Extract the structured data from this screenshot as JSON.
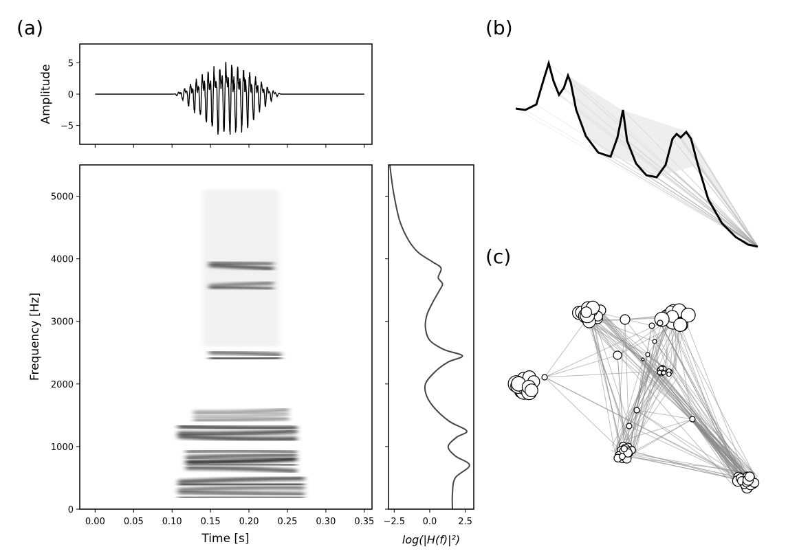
{
  "panels": {
    "a": "(a)",
    "b": "(b)",
    "c": "(c)"
  },
  "chart_data": [
    {
      "id": "waveform",
      "type": "line",
      "title": "",
      "xlabel": "",
      "ylabel": "Amplitude",
      "xlim": [
        -0.02,
        0.36
      ],
      "ylim": [
        -8,
        8
      ],
      "yticks": [
        {
          "value": 5,
          "label": "5"
        },
        {
          "value": 0,
          "label": "0"
        },
        {
          "value": -5,
          "label": "−5"
        }
      ],
      "xticks": [
        0.0,
        0.05,
        0.1,
        0.15,
        0.2,
        0.25,
        0.3,
        0.35
      ],
      "envelope": {
        "start": 0.1,
        "peak_time": 0.17,
        "end": 0.28,
        "peak_amplitude": 7.2
      },
      "x_range": [
        0.0,
        0.35
      ],
      "grid": false
    },
    {
      "id": "spectrogram",
      "type": "heatmap",
      "title": "",
      "xlabel": "Time [s]",
      "ylabel": "Frequency [Hz]",
      "xlim": [
        -0.02,
        0.36
      ],
      "ylim": [
        0,
        5500
      ],
      "xticks": [
        {
          "value": 0.0,
          "label": "0.00"
        },
        {
          "value": 0.05,
          "label": "0.05"
        },
        {
          "value": 0.1,
          "label": "0.10"
        },
        {
          "value": 0.15,
          "label": "0.15"
        },
        {
          "value": 0.2,
          "label": "0.20"
        },
        {
          "value": 0.25,
          "label": "0.25"
        },
        {
          "value": 0.3,
          "label": "0.30"
        },
        {
          "value": 0.35,
          "label": "0.35"
        }
      ],
      "yticks": [
        {
          "value": 0,
          "label": "0"
        },
        {
          "value": 1000,
          "label": "1000"
        },
        {
          "value": 2000,
          "label": "2000"
        },
        {
          "value": 3000,
          "label": "3000"
        },
        {
          "value": 4000,
          "label": "4000"
        },
        {
          "value": 5000,
          "label": "5000"
        }
      ],
      "bands": [
        {
          "t0": 0.11,
          "t1": 0.27,
          "f0": 150,
          "f1": 500,
          "intensity": 0.95
        },
        {
          "t0": 0.12,
          "t1": 0.26,
          "f0": 600,
          "f1": 950,
          "intensity": 1.0
        },
        {
          "t0": 0.11,
          "t1": 0.26,
          "f0": 1100,
          "f1": 1350,
          "intensity": 1.0
        },
        {
          "t0": 0.13,
          "t1": 0.25,
          "f0": 1400,
          "f1": 1600,
          "intensity": 0.45
        },
        {
          "t0": 0.15,
          "t1": 0.24,
          "f0": 2380,
          "f1": 2520,
          "intensity": 0.85
        },
        {
          "t0": 0.15,
          "t1": 0.23,
          "f0": 3500,
          "f1": 3620,
          "intensity": 0.7
        },
        {
          "t0": 0.15,
          "t1": 0.23,
          "f0": 3840,
          "f1": 3960,
          "intensity": 0.75
        }
      ],
      "grid": false
    },
    {
      "id": "filter_response",
      "type": "line",
      "title": "",
      "xlabel": "log(|H(f)|²)",
      "ylabel": "",
      "xlim": [
        -2.9,
        3.1
      ],
      "ylim": [
        0,
        5500
      ],
      "xticks": [
        {
          "value": -2.5,
          "label": "−2.5"
        },
        {
          "value": 0.0,
          "label": "0.0"
        },
        {
          "value": 2.5,
          "label": "2.5"
        }
      ],
      "y": [
        0,
        250,
        500,
        700,
        850,
        1000,
        1150,
        1250,
        1400,
        1600,
        1800,
        2000,
        2200,
        2350,
        2450,
        2550,
        2700,
        2900,
        3100,
        3300,
        3500,
        3600,
        3700,
        3850,
        3950,
        4100,
        4300,
        4600,
        5000,
        5300,
        5500
      ],
      "x": [
        1.6,
        1.6,
        1.8,
        2.8,
        1.8,
        1.3,
        1.9,
        2.6,
        1.4,
        0.4,
        -0.2,
        -0.3,
        0.4,
        1.3,
        2.3,
        1.0,
        0.0,
        -0.3,
        -0.2,
        0.2,
        0.7,
        0.9,
        0.6,
        0.8,
        0.2,
        -0.8,
        -1.5,
        -2.1,
        -2.5,
        -2.7,
        -2.8
      ],
      "grid": false
    },
    {
      "id": "filter_tube_b",
      "type": "line",
      "title": "",
      "description_series": "spectral envelope profile with sweep",
      "grid": false
    },
    {
      "id": "network_c",
      "type": "scatter",
      "title": "",
      "grid": false
    }
  ]
}
